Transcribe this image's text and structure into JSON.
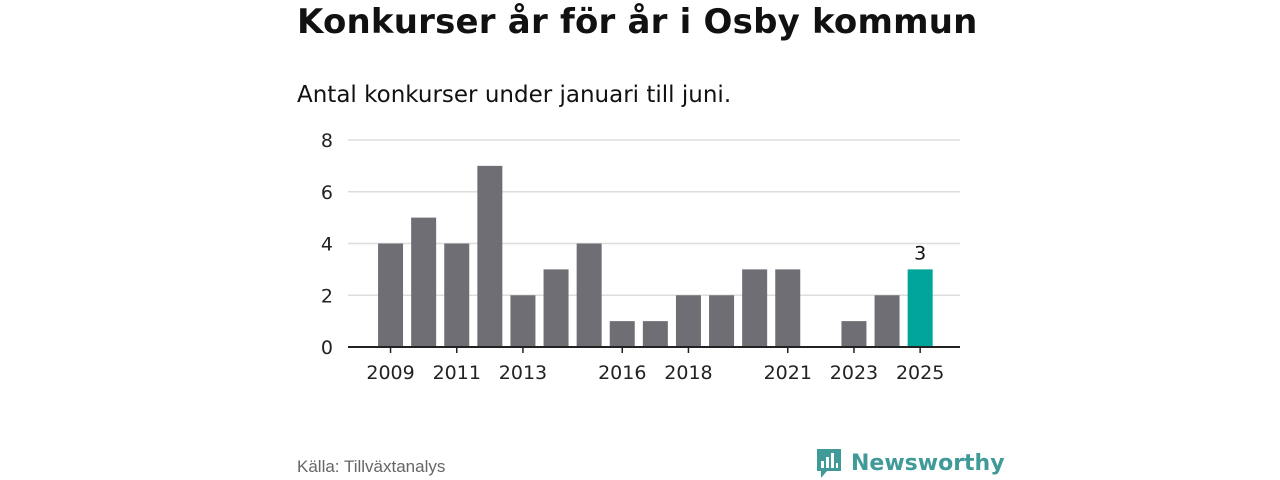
{
  "title": "Konkurser år för år i Osby kommun",
  "subtitle": "Antal konkurser under januari till juni.",
  "source": "Källa: Tillväxtanalys",
  "brand": {
    "name": "Newsworthy",
    "color": "#3f9a98",
    "icon": "bar-chart-speech-bubble-icon"
  },
  "chart_data": {
    "type": "bar",
    "categories": [
      "2009",
      "2010",
      "2011",
      "2012",
      "2013",
      "2014",
      "2015",
      "2016",
      "2017",
      "2018",
      "2019",
      "2020",
      "2021",
      "2022",
      "2023",
      "2024",
      "2025"
    ],
    "values": [
      4,
      5,
      4,
      7,
      2,
      3,
      4,
      1,
      1,
      2,
      2,
      3,
      3,
      0,
      1,
      2,
      3
    ],
    "x_tick_labels": [
      "2009",
      "2011",
      "2013",
      "2016",
      "2018",
      "2021",
      "2023",
      "2025"
    ],
    "y_ticks": [
      0,
      2,
      4,
      6,
      8
    ],
    "ylim": [
      0,
      8
    ],
    "highlight": {
      "category": "2025",
      "label": "3",
      "color": "#00a498"
    },
    "bar_color": "#6f6e74",
    "grid": true
  }
}
